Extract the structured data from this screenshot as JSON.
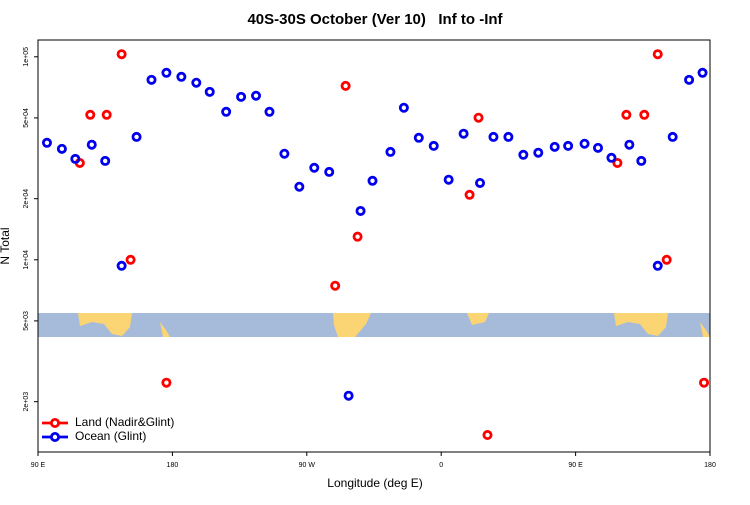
{
  "chart_data": {
    "type": "scatter",
    "title": "40S-30S October (Ver 10)   Inf to -Inf",
    "x_label": "Longitude (deg E)",
    "y_label": "N Total",
    "ylog": true,
    "xlim": [
      90,
      540
    ],
    "ylim": [
      1130,
      121000
    ],
    "xticks": [
      {
        "value": 90,
        "label": "90 E"
      },
      {
        "value": 180,
        "label": "180"
      },
      {
        "value": 270,
        "label": "90 W"
      },
      {
        "value": 360,
        "label": "0"
      },
      {
        "value": 450,
        "label": "90 E"
      },
      {
        "value": 540,
        "label": "180"
      }
    ],
    "yticks": [
      {
        "value": 2000,
        "label": "2e+03"
      },
      {
        "value": 5000,
        "label": "5e+03"
      },
      {
        "value": 10000,
        "label": "1e+04"
      },
      {
        "value": 20000,
        "label": "2e+04"
      },
      {
        "value": 50000,
        "label": "5e+04"
      },
      {
        "value": 100000,
        "label": "1e+05"
      }
    ],
    "legend": "lower left",
    "series": [
      {
        "name": "Land (Nadir&Glint)",
        "color": "#ff0000",
        "x": [
          118,
          125,
          136,
          146,
          152,
          176,
          289,
          296,
          304,
          379,
          385,
          391,
          478,
          484,
          496,
          505,
          511,
          536
        ],
        "values": [
          30000,
          51800,
          51800,
          103000,
          10000,
          2480,
          7450,
          71900,
          13000,
          20900,
          50100,
          1370,
          30000,
          51800,
          51800,
          103000,
          10000,
          2480
        ]
      },
      {
        "name": "Ocean (Glint)",
        "color": "#0000ee",
        "x": [
          96,
          106,
          115,
          126,
          135,
          146,
          156,
          166,
          176,
          186,
          196,
          205,
          216,
          226,
          236,
          245,
          255,
          265,
          275,
          285,
          298,
          306,
          314,
          326,
          335,
          345,
          355,
          365,
          375,
          386,
          395,
          405,
          415,
          425,
          436,
          445,
          456,
          465,
          474,
          486,
          494,
          505,
          515,
          526,
          535
        ],
        "values": [
          37700,
          35200,
          31400,
          36900,
          30700,
          9340,
          40300,
          77000,
          83400,
          79700,
          74500,
          67200,
          53600,
          63500,
          64300,
          53600,
          33300,
          22900,
          28400,
          27100,
          2140,
          17400,
          24500,
          34000,
          56100,
          39900,
          36400,
          24800,
          41800,
          23900,
          40300,
          40300,
          32900,
          33700,
          36000,
          36400,
          37300,
          35600,
          31800,
          36900,
          30700,
          9340,
          40300,
          77000,
          83400
        ]
      }
    ]
  }
}
